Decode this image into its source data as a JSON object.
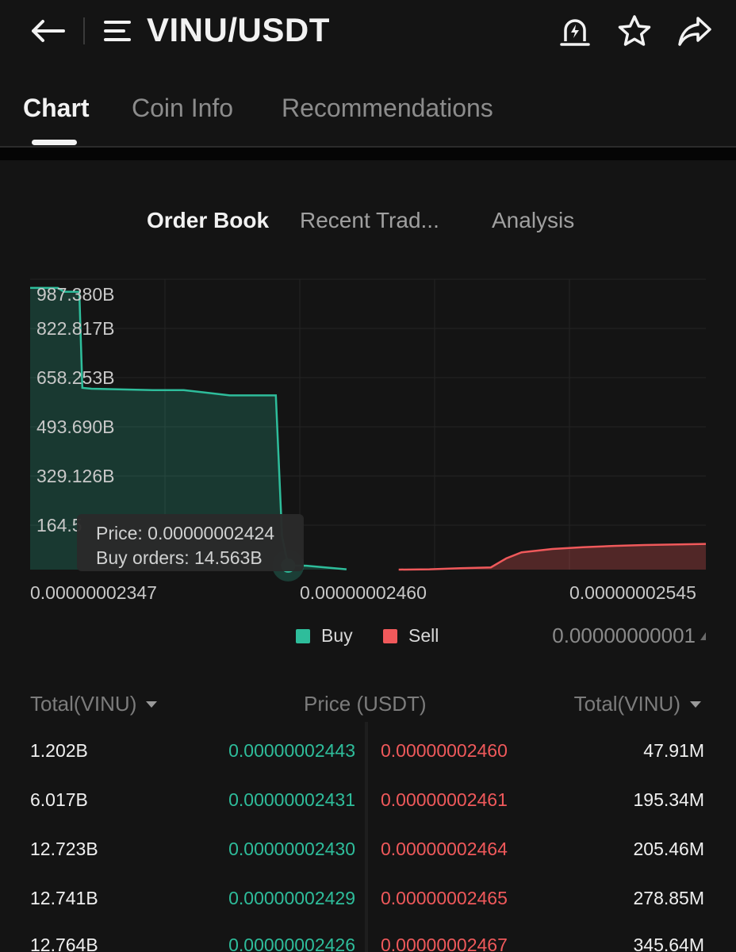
{
  "header": {
    "pair": "VINU/USDT",
    "icons": [
      "back-arrow-icon",
      "menu-icon",
      "price-alert-icon",
      "star-icon",
      "share-icon"
    ]
  },
  "tabs": [
    {
      "label": "Chart",
      "active": true
    },
    {
      "label": "Coin Info",
      "active": false
    },
    {
      "label": "Recommendations",
      "active": false
    }
  ],
  "subtabs": [
    {
      "label": "Order Book",
      "active": true
    },
    {
      "label": "Recent Trad...",
      "active": false
    },
    {
      "label": "Analysis",
      "active": false
    }
  ],
  "colors": {
    "buy": "#2ebd9b",
    "sell": "#f0595b",
    "background": "#141414"
  },
  "chart_data": {
    "type": "area",
    "y_tick_labels": [
      "987.380B",
      "822.817B",
      "658.253B",
      "493.690B",
      "329.126B",
      "164.5"
    ],
    "x_tick_labels": [
      "0.00000002347",
      "0.00000002460",
      "0.00000002545"
    ],
    "ylim": [
      0,
      1040
    ],
    "grid": true,
    "legend": "bottom",
    "series": [
      {
        "name": "Buy",
        "color": "#2ebd9b",
        "x": [
          2.34e-08,
          2.349e-08,
          2.351e-08,
          2.356e-08,
          2.357e-08,
          2.36e-08,
          2.38e-08,
          2.39e-08,
          2.405e-08,
          2.41e-08,
          2.42e-08,
          2.422e-08,
          2.424e-08,
          2.43e-08,
          2.443e-08
        ],
        "values": [
          1009,
          1009,
          995,
          995,
          651,
          648,
          643,
          643,
          624,
          624,
          624,
          120,
          14.563,
          14,
          1.2
        ]
      },
      {
        "name": "Sell",
        "color": "#f0595b",
        "x": [
          2.46e-08,
          2.47e-08,
          2.48e-08,
          2.49e-08,
          2.495e-08,
          2.5e-08,
          2.51e-08,
          2.52e-08,
          2.53e-08,
          2.54e-08,
          2.56e-08
        ],
        "values": [
          0.05,
          1,
          5,
          8,
          40,
          62,
          74,
          80,
          85,
          88,
          92
        ]
      }
    ],
    "tooltip": {
      "price_line": "Price: 0.00000002424",
      "orders_line": "Buy orders: 14.563B"
    }
  },
  "legend": {
    "buy_label": "Buy",
    "sell_label": "Sell",
    "precision": "0.00000000001"
  },
  "order_book": {
    "headers": {
      "left_total": "Total(VINU)",
      "price": "Price (USDT)",
      "right_total": "Total(VINU)"
    },
    "rows": [
      {
        "buy_total": "1.202B",
        "buy_price": "0.00000002443",
        "sell_price": "0.00000002460",
        "sell_total": "47.91M"
      },
      {
        "buy_total": "6.017B",
        "buy_price": "0.00000002431",
        "sell_price": "0.00000002461",
        "sell_total": "195.34M"
      },
      {
        "buy_total": "12.723B",
        "buy_price": "0.00000002430",
        "sell_price": "0.00000002464",
        "sell_total": "205.46M"
      },
      {
        "buy_total": "12.741B",
        "buy_price": "0.00000002429",
        "sell_price": "0.00000002465",
        "sell_total": "278.85M"
      },
      {
        "buy_total": "12.764B",
        "buy_price": "0.00000002426",
        "sell_price": "0.00000002467",
        "sell_total": "345.64M"
      }
    ]
  }
}
